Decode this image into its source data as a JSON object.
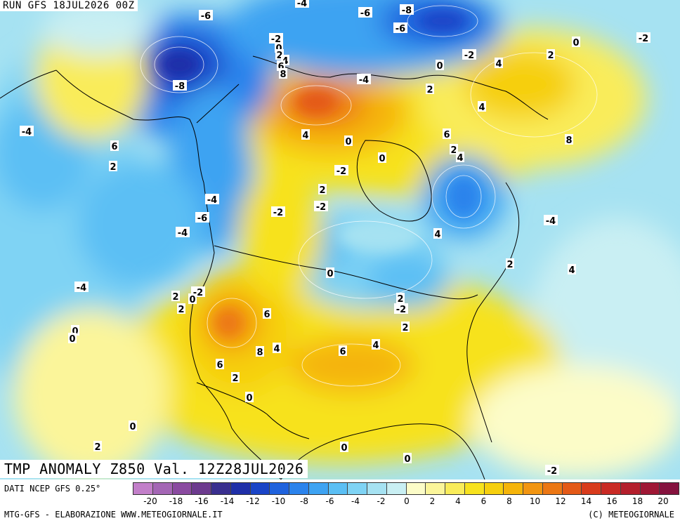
{
  "run_label": "RUN GFS 18JUL2026 00Z",
  "title": "TMP ANOMALY Z850 Val. 12Z28JUL2026",
  "footer": {
    "source": "DATI NCEP GFS 0.25°",
    "credit": "MTG-GFS - ELABORAZIONE WWW.METEOGIORNALE.IT",
    "copyright": "(C) METEOGIORNALE"
  },
  "legend": {
    "colors": [
      "#c27fc9",
      "#a466b5",
      "#8a4aa0",
      "#6c3a8e",
      "#3a2f8f",
      "#1f2fa8",
      "#1a44c7",
      "#1f62dd",
      "#2b83ec",
      "#3ea3f2",
      "#5bbff4",
      "#7fd3f4",
      "#a6e2f2",
      "#c9eff3",
      "#fcfcc8",
      "#fbf59a",
      "#f9ec5a",
      "#f7e21e",
      "#f6cf0e",
      "#f5b40a",
      "#f29511",
      "#ec7714",
      "#e45917",
      "#d83b1c",
      "#c92a24",
      "#b41f2c",
      "#9f1735",
      "#85123e"
    ],
    "ticks": [
      "-20",
      "-18",
      "-16",
      "-14",
      "-12",
      "-10",
      "-8",
      "-6",
      "-4",
      "-2",
      "0",
      "2",
      "4",
      "6",
      "8",
      "10",
      "12",
      "14",
      "16",
      "18",
      "20"
    ]
  },
  "contour_labels": [
    "-6",
    "-8",
    "-6",
    "-4",
    "-8",
    "-2",
    "0",
    "2",
    "4",
    "6",
    "8",
    "-4",
    "-2",
    "0",
    "-4",
    "-6",
    "2",
    "0",
    "4",
    "2",
    "-4",
    "-2",
    "4",
    "6",
    "2",
    "4",
    "8",
    "6",
    "2",
    "0",
    "0",
    "-2",
    "4",
    "2",
    "-4",
    "-6",
    "-4",
    "-2",
    "-2",
    "0",
    "4",
    "-4",
    "2",
    "4",
    "2",
    "-2",
    "6",
    "8",
    "4",
    "6",
    "4",
    "2",
    "6",
    "2",
    "0",
    "-4",
    "-2",
    "0",
    "2",
    "0",
    "0",
    "2",
    "0",
    "0",
    "2",
    "0",
    "-2"
  ]
}
